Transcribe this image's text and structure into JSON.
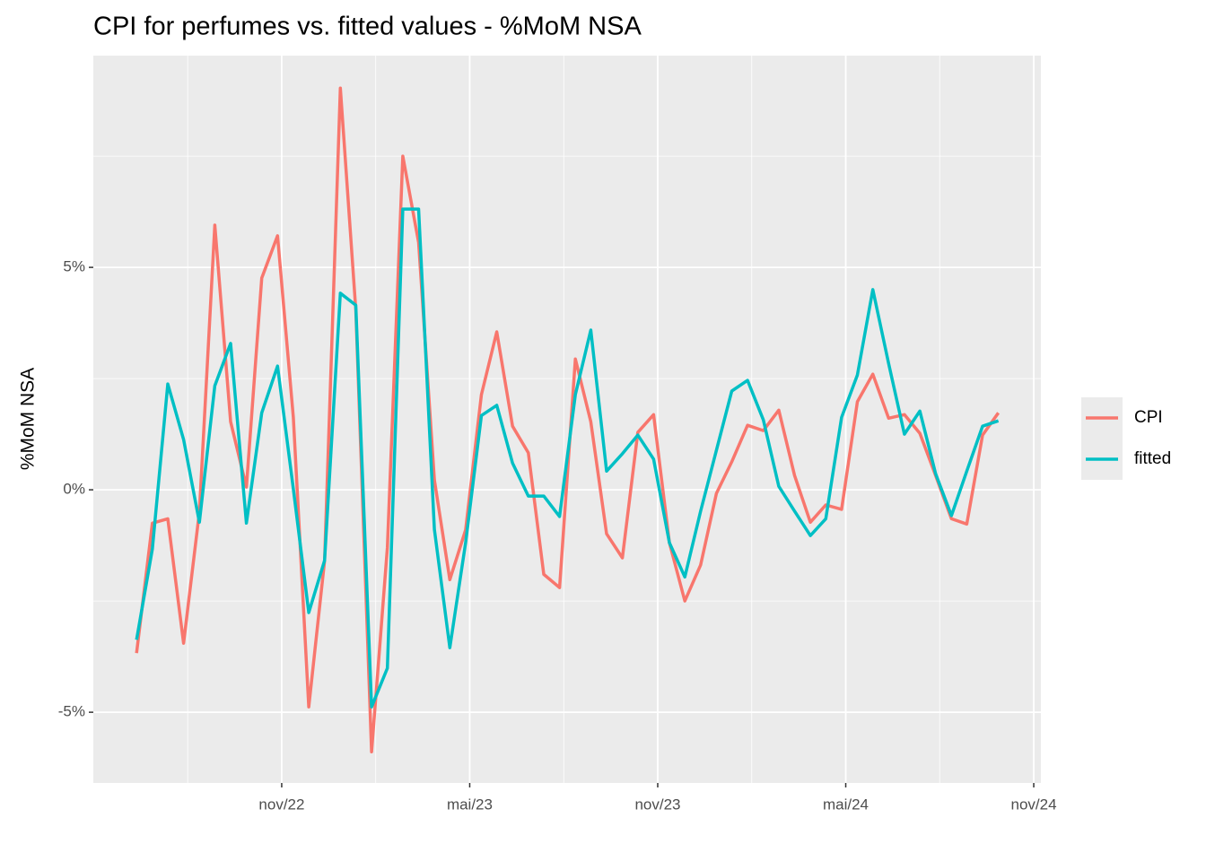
{
  "chart_data": {
    "type": "line",
    "title": "CPI for perfumes vs. fitted values - %MoM NSA",
    "ylabel": "%MoM NSA",
    "x": [
      2022.447,
      2022.489,
      2022.53,
      2022.572,
      2022.614,
      2022.655,
      2022.697,
      2022.739,
      2022.78,
      2022.822,
      2022.864,
      2022.905,
      2022.947,
      2022.989,
      2023.03,
      2023.072,
      2023.114,
      2023.155,
      2023.197,
      2023.239,
      2023.28,
      2023.322,
      2023.364,
      2023.405,
      2023.447,
      2023.489,
      2023.53,
      2023.572,
      2023.614,
      2023.655,
      2023.697,
      2023.739,
      2023.78,
      2023.822,
      2023.864,
      2023.905,
      2023.947,
      2023.989,
      2024.03,
      2024.072,
      2024.114,
      2024.155,
      2024.197,
      2024.239,
      2024.28,
      2024.322,
      2024.364,
      2024.405,
      2024.447,
      2024.489,
      2024.53,
      2024.572,
      2024.614,
      2024.655,
      2024.697,
      2024.739
    ],
    "series": [
      {
        "name": "CPI",
        "color": "#F8766D",
        "values": [
          -3.67,
          -0.75,
          -0.65,
          -3.45,
          -0.5,
          5.95,
          1.53,
          0.06,
          4.76,
          5.71,
          1.63,
          -4.88,
          -1.6,
          9.03,
          4.05,
          -5.89,
          -1.3,
          7.5,
          5.56,
          0.22,
          -2.02,
          -0.9,
          2.14,
          3.55,
          1.43,
          0.83,
          -1.9,
          -2.2,
          2.94,
          1.53,
          -0.99,
          -1.53,
          1.29,
          1.69,
          -1.19,
          -2.5,
          -1.69,
          -0.08,
          0.63,
          1.45,
          1.33,
          1.79,
          0.32,
          -0.73,
          -0.34,
          -0.44,
          1.98,
          2.6,
          1.61,
          1.69,
          1.27,
          0.32,
          -0.65,
          -0.77,
          1.23,
          1.73
        ]
      },
      {
        "name": "fitted",
        "color": "#00BFC4",
        "values": [
          -3.37,
          -1.33,
          2.38,
          1.13,
          -0.73,
          2.34,
          3.29,
          -0.75,
          1.73,
          2.78,
          0.02,
          -2.76,
          -1.59,
          4.42,
          4.15,
          -4.88,
          -4.01,
          6.31,
          6.31,
          -0.89,
          -3.55,
          -1.19,
          1.67,
          1.9,
          0.6,
          -0.14,
          -0.14,
          -0.6,
          2.14,
          3.59,
          0.42,
          0.81,
          1.23,
          0.69,
          -1.19,
          -1.96,
          -0.48,
          0.89,
          2.22,
          2.46,
          1.57,
          0.08,
          -0.48,
          -1.03,
          -0.65,
          1.63,
          2.58,
          4.5,
          2.84,
          1.25,
          1.77,
          0.36,
          -0.58,
          0.42,
          1.43,
          1.55
        ]
      }
    ],
    "xlim": [
      2022.332,
      2024.852
    ],
    "xticks": [
      {
        "value": 2022.833,
        "label": "nov/22"
      },
      {
        "value": 2023.333,
        "label": "mai/23"
      },
      {
        "value": 2023.833,
        "label": "nov/23"
      },
      {
        "value": 2024.333,
        "label": "mai/24"
      },
      {
        "value": 2024.833,
        "label": "nov/24"
      }
    ],
    "xminorticks": [
      2022.583,
      2023.083,
      2023.583,
      2024.083,
      2024.583
    ],
    "ylim": [
      -6.59,
      9.76
    ],
    "yticks": [
      {
        "value": 5,
        "label": "5%"
      },
      {
        "value": 0,
        "label": "0%"
      },
      {
        "value": -5,
        "label": "-5%"
      }
    ],
    "yminorticks": [
      -2.5,
      2.5,
      7.5
    ],
    "grid": true,
    "legend": "right"
  }
}
